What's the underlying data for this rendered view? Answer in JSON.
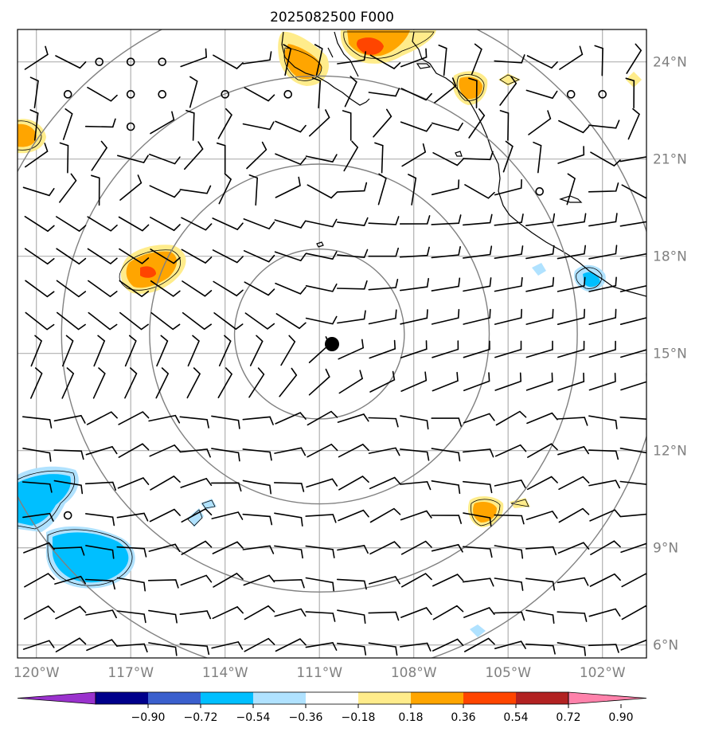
{
  "title": "2025082500 F000",
  "axes": {
    "lon_labels": [
      "120°W",
      "117°W",
      "114°W",
      "111°W",
      "108°W",
      "105°W",
      "102°W"
    ],
    "lat_labels": [
      "24°N",
      "21°N",
      "18°N",
      "15°N",
      "12°N",
      "9°N",
      "6°N"
    ],
    "lon_values": [
      -120,
      -117,
      -114,
      -111,
      -108,
      -105,
      -102
    ],
    "lat_values": [
      24,
      21,
      18,
      15,
      12,
      9,
      6
    ],
    "lon_range": [
      -120.6,
      -100.6
    ],
    "lat_range": [
      5.6,
      25.0
    ]
  },
  "center": {
    "lon": -111.0,
    "lat": 15.6
  },
  "range_ring_radii_deg": [
    2.7,
    5.4,
    8.2,
    10.9
  ],
  "colorbar": {
    "ticks": [
      "−0.90",
      "−0.72",
      "−0.54",
      "−0.36",
      "−0.18",
      "0.18",
      "0.36",
      "0.54",
      "0.72",
      "0.90"
    ],
    "colors": [
      "#9a32cd",
      "#00008b",
      "#3a5fcd",
      "#00bfff",
      "#b0e2ff",
      "#ffffff",
      "#ffec8b",
      "#ffa500",
      "#ff4500",
      "#b22222",
      "#ff82ab"
    ]
  },
  "colors": {
    "grid": "#b0b0b0",
    "ring": "#808080",
    "axis_text": "#808080",
    "coast": "#000000"
  }
}
